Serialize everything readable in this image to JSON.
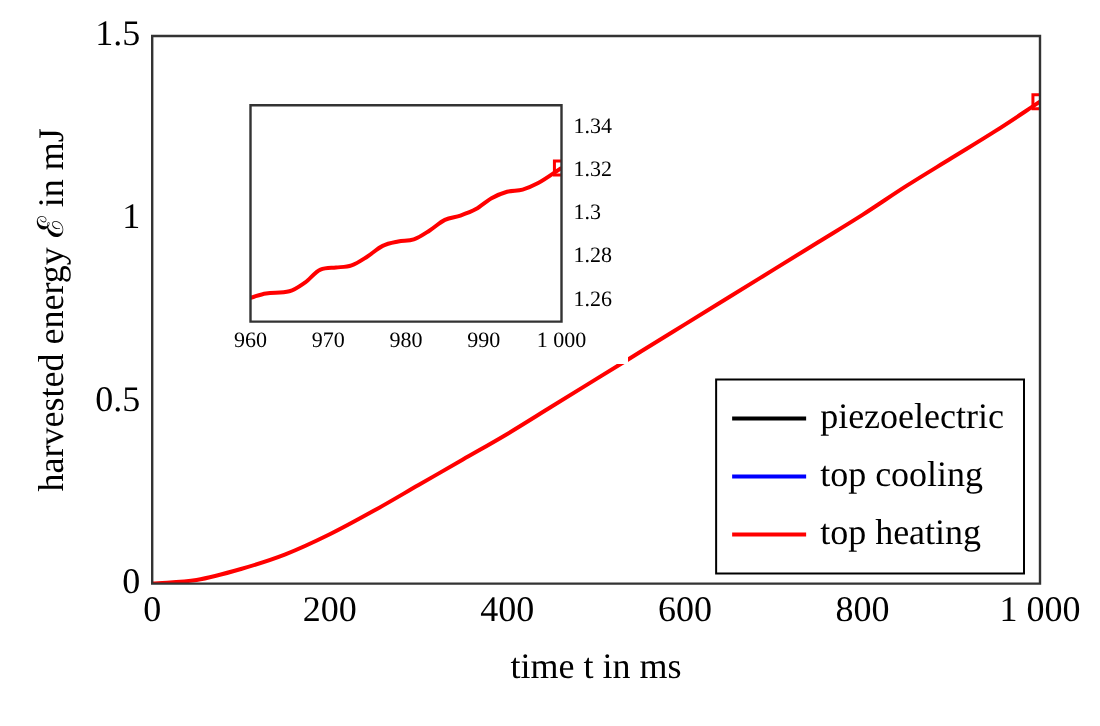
{
  "chart_data": [
    {
      "type": "line",
      "xlabel": "time t in ms",
      "ylabel": "harvested energy ℰ in mJ",
      "x": [
        0,
        50,
        100,
        150,
        200,
        250,
        300,
        350,
        400,
        450,
        500,
        550,
        600,
        650,
        700,
        750,
        800,
        850,
        900,
        950,
        1000
      ],
      "xlim": [
        0,
        1000
      ],
      "xticks": [
        0,
        200,
        400,
        600,
        800,
        {
          "value": 1000,
          "label": "1 000"
        }
      ],
      "ylim": [
        0,
        1.5
      ],
      "yticks": [
        0,
        0.5,
        1,
        1.5
      ],
      "legend": "bottom right",
      "marker": "none",
      "line_style": "solid",
      "series": [
        {
          "name": "piezoelectric",
          "color": "#000000",
          "values": [
            null,
            null,
            null,
            null,
            null,
            null,
            null,
            null,
            null,
            null,
            null,
            null,
            null,
            null,
            null,
            null,
            null,
            null,
            null,
            null,
            null
          ]
        },
        {
          "name": "top cooling",
          "color": "#0000ff",
          "values": [
            null,
            null,
            null,
            null,
            null,
            null,
            null,
            null,
            null,
            null,
            null,
            null,
            null,
            null,
            null,
            null,
            null,
            null,
            null,
            null,
            null
          ]
        },
        {
          "name": "top heating",
          "color": "#ff0000",
          "values": [
            0,
            0.01,
            0.04,
            0.08,
            0.135,
            0.2,
            0.27,
            0.34,
            0.41,
            0.485,
            0.56,
            0.635,
            0.71,
            0.785,
            0.86,
            0.935,
            1.01,
            1.09,
            1.165,
            1.24,
            1.32
          ]
        },
        {
          "type": "scatter",
          "marker": "square",
          "color": "#ff0000",
          "x": [
            1000
          ],
          "values": [
            1.32
          ]
        }
      ]
    },
    {
      "type": "line",
      "x": [
        960,
        962,
        965,
        967,
        969,
        971,
        973,
        975,
        977,
        979,
        981,
        983,
        985,
        987,
        989,
        991,
        993,
        995,
        997,
        1000
      ],
      "xlim": [
        960,
        1000
      ],
      "xticks": [
        960,
        970,
        980,
        990,
        {
          "value": 1000,
          "label": "1 000"
        }
      ],
      "ylim": [
        1.25,
        1.35
      ],
      "yticks": [
        1.26,
        1.28,
        1.3,
        1.32,
        1.34
      ],
      "marker": "none",
      "line_style": "solid",
      "series": [
        {
          "color": "#ff0000",
          "values": [
            1.261,
            1.263,
            1.264,
            1.268,
            1.274,
            1.275,
            1.276,
            1.28,
            1.285,
            1.287,
            1.288,
            1.292,
            1.297,
            1.299,
            1.302,
            1.307,
            1.31,
            1.311,
            1.314,
            1.321
          ]
        },
        {
          "type": "scatter",
          "marker": "square",
          "color": "#ff0000",
          "x": [
            1000
          ],
          "values": [
            1.321
          ]
        }
      ]
    }
  ]
}
